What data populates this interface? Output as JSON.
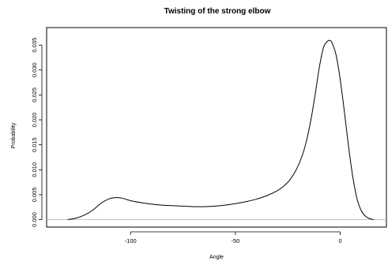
{
  "chart_data": {
    "type": "line",
    "title": "Twisting of the strong elbow",
    "xlabel": "Angle",
    "ylabel": "Probability",
    "xlim": [
      -140,
      22
    ],
    "ylim": [
      -0.0015,
      0.0385
    ],
    "xticks": [
      {
        "value": -100,
        "label": "-100"
      },
      {
        "value": -50,
        "label": "-50"
      },
      {
        "value": 0,
        "label": "0"
      }
    ],
    "yticks": [
      {
        "value": 0.0,
        "label": "0.000"
      },
      {
        "value": 0.005,
        "label": "0.005"
      },
      {
        "value": 0.01,
        "label": "0.010"
      },
      {
        "value": 0.015,
        "label": "0.015"
      },
      {
        "value": 0.02,
        "label": "0.020"
      },
      {
        "value": 0.025,
        "label": "0.025"
      },
      {
        "value": 0.03,
        "label": "0.030"
      },
      {
        "value": 0.035,
        "label": "0.035"
      }
    ],
    "baseline": 0,
    "grid": false,
    "series": [
      {
        "x": [
          -130,
          -126,
          -122,
          -118,
          -114,
          -110,
          -107,
          -104,
          -100,
          -95,
          -90,
          -85,
          -80,
          -75,
          -70,
          -65,
          -60,
          -55,
          -50,
          -45,
          -40,
          -35,
          -30,
          -27,
          -24,
          -21,
          -18,
          -16,
          -14,
          -12,
          -10,
          -8,
          -6,
          -5,
          -4,
          -2,
          0,
          2,
          4,
          6,
          8,
          10,
          12,
          14,
          16
        ],
        "y": [
          0.0,
          0.0003,
          0.0009,
          0.0019,
          0.0033,
          0.0042,
          0.0044,
          0.0043,
          0.0038,
          0.0034,
          0.0031,
          0.0029,
          0.0028,
          0.0027,
          0.0026,
          0.0026,
          0.0027,
          0.0029,
          0.0032,
          0.0036,
          0.0041,
          0.0048,
          0.0058,
          0.0067,
          0.008,
          0.01,
          0.013,
          0.016,
          0.02,
          0.025,
          0.0305,
          0.0345,
          0.0358,
          0.0359,
          0.0355,
          0.033,
          0.028,
          0.0215,
          0.0145,
          0.0085,
          0.0042,
          0.0018,
          0.0007,
          0.0002,
          0.0
        ]
      }
    ]
  }
}
